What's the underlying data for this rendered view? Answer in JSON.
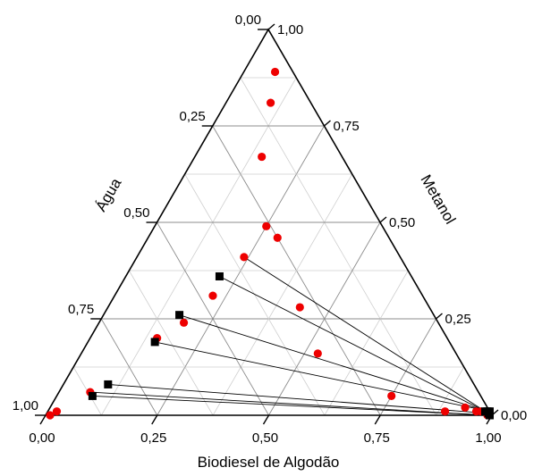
{
  "chart_data": {
    "type": "scatter",
    "subtype": "ternary",
    "title": "",
    "axes": {
      "bottom": {
        "label": "Biodiesel de Algodão",
        "ticks": [
          "0,00",
          "0,25",
          "0,50",
          "0,75",
          "1,00"
        ]
      },
      "left": {
        "label": "Água",
        "ticks": [
          "0,00",
          "0,25",
          "0,50",
          "0,75",
          "1,00"
        ]
      },
      "right": {
        "label": "Metanol",
        "ticks": [
          "0,00",
          "0,25",
          "0,50",
          "0,75",
          "1,00"
        ]
      }
    },
    "grid": true,
    "series": [
      {
        "marker": "circle",
        "color": "#ee0000",
        "points": [
          {
            "biodiesel": 0.01,
            "agua": 0.99,
            "metanol": 0.0
          },
          {
            "biodiesel": 0.02,
            "agua": 0.97,
            "metanol": 0.01
          },
          {
            "biodiesel": 0.07,
            "agua": 0.87,
            "metanol": 0.06
          },
          {
            "biodiesel": 0.15,
            "agua": 0.65,
            "metanol": 0.2
          },
          {
            "biodiesel": 0.19,
            "agua": 0.57,
            "metanol": 0.24
          },
          {
            "biodiesel": 0.22,
            "agua": 0.47,
            "metanol": 0.31
          },
          {
            "biodiesel": 0.24,
            "agua": 0.35,
            "metanol": 0.41
          },
          {
            "biodiesel": 0.25,
            "agua": 0.26,
            "metanol": 0.49
          },
          {
            "biodiesel": 0.07,
            "agua": 0.04,
            "metanol": 0.89
          },
          {
            "biodiesel": 0.1,
            "agua": 0.09,
            "metanol": 0.81
          },
          {
            "biodiesel": 0.15,
            "agua": 0.18,
            "metanol": 0.67
          },
          {
            "biodiesel": 0.29,
            "agua": 0.25,
            "metanol": 0.46
          },
          {
            "biodiesel": 0.43,
            "agua": 0.29,
            "metanol": 0.28
          },
          {
            "biodiesel": 0.53,
            "agua": 0.31,
            "metanol": 0.16
          },
          {
            "biodiesel": 0.75,
            "agua": 0.2,
            "metanol": 0.05
          },
          {
            "biodiesel": 0.89,
            "agua": 0.1,
            "metanol": 0.01
          },
          {
            "biodiesel": 0.93,
            "agua": 0.05,
            "metanol": 0.02
          },
          {
            "biodiesel": 0.96,
            "agua": 0.03,
            "metanol": 0.01
          },
          {
            "biodiesel": 0.97,
            "agua": 0.02,
            "metanol": 0.01
          },
          {
            "biodiesel": 0.99,
            "agua": 0.01,
            "metanol": 0.0
          }
        ]
      },
      {
        "marker": "square",
        "color": "#000000",
        "points": [
          {
            "biodiesel": 0.08,
            "agua": 0.87,
            "metanol": 0.05
          },
          {
            "biodiesel": 0.1,
            "agua": 0.82,
            "metanol": 0.08
          },
          {
            "biodiesel": 0.15,
            "agua": 0.66,
            "metanol": 0.19
          },
          {
            "biodiesel": 0.17,
            "agua": 0.57,
            "metanol": 0.26
          },
          {
            "biodiesel": 0.21,
            "agua": 0.43,
            "metanol": 0.36
          },
          {
            "biodiesel": 0.98,
            "agua": 0.01,
            "metanol": 0.01
          },
          {
            "biodiesel": 0.985,
            "agua": 0.005,
            "metanol": 0.01
          },
          {
            "biodiesel": 0.99,
            "agua": 0.005,
            "metanol": 0.005
          },
          {
            "biodiesel": 0.995,
            "agua": 0.005,
            "metanol": 0.0
          },
          {
            "biodiesel": 0.99,
            "agua": 0.0,
            "metanol": 0.01
          }
        ]
      }
    ],
    "tie_lines": [
      {
        "from": {
          "biodiesel": 0.08,
          "agua": 0.87,
          "metanol": 0.05
        },
        "to": {
          "biodiesel": 0.995,
          "agua": 0.005,
          "metanol": 0.0
        }
      },
      {
        "from": {
          "biodiesel": 0.1,
          "agua": 0.82,
          "metanol": 0.08
        },
        "to": {
          "biodiesel": 0.99,
          "agua": 0.005,
          "metanol": 0.005
        }
      },
      {
        "from": {
          "biodiesel": 0.15,
          "agua": 0.66,
          "metanol": 0.19
        },
        "to": {
          "biodiesel": 0.99,
          "agua": 0.0,
          "metanol": 0.01
        }
      },
      {
        "from": {
          "biodiesel": 0.17,
          "agua": 0.57,
          "metanol": 0.26
        },
        "to": {
          "biodiesel": 0.985,
          "agua": 0.005,
          "metanol": 0.01
        }
      },
      {
        "from": {
          "biodiesel": 0.21,
          "agua": 0.43,
          "metanol": 0.36
        },
        "to": {
          "biodiesel": 0.98,
          "agua": 0.01,
          "metanol": 0.01
        }
      },
      {
        "from": {
          "biodiesel": 0.24,
          "agua": 0.35,
          "metanol": 0.41
        },
        "to": {
          "biodiesel": 0.98,
          "agua": 0.01,
          "metanol": 0.01
        }
      },
      {
        "from": {
          "biodiesel": 0.07,
          "agua": 0.87,
          "metanol": 0.06
        },
        "to": {
          "biodiesel": 0.99,
          "agua": 0.01,
          "metanol": 0.0
        }
      }
    ]
  }
}
